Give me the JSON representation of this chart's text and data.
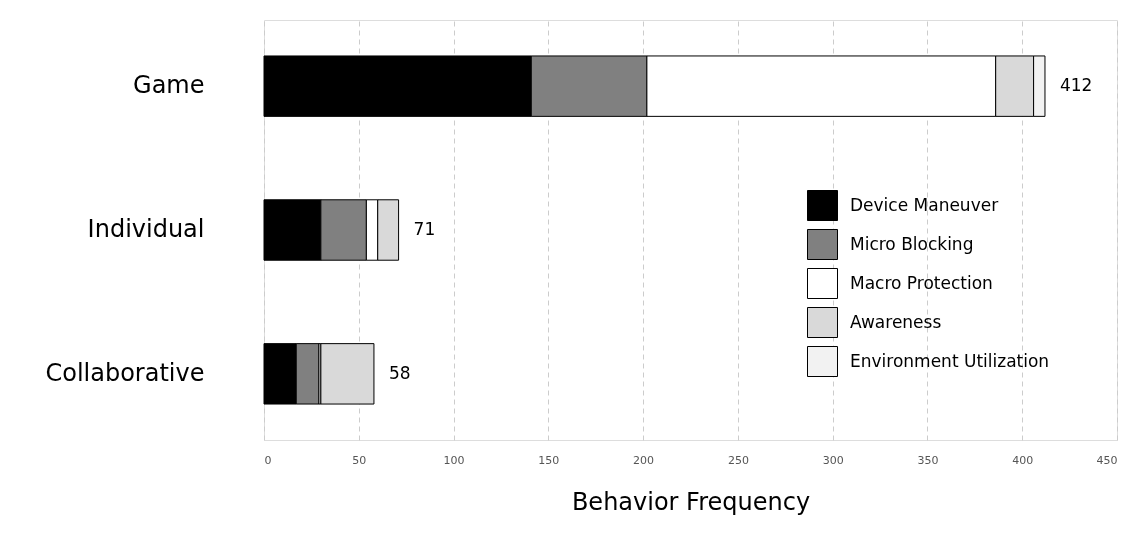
{
  "chart_data": {
    "type": "bar",
    "orientation": "horizontal",
    "stacked": true,
    "xlabel": "Behavior Frequency",
    "categories": [
      "Game",
      "Individual",
      "Collaborative"
    ],
    "series": [
      {
        "name": "Device Maneuver",
        "color": "#000000",
        "values": [
          141,
          30,
          17
        ]
      },
      {
        "name": "Micro Blocking",
        "color": "#808080",
        "values": [
          61,
          24,
          12
        ]
      },
      {
        "name": "Macro Protection",
        "color": "#ffffff",
        "values": [
          184,
          6,
          1
        ]
      },
      {
        "name": "Awareness",
        "color": "#d9d9d9",
        "values": [
          20,
          11,
          28
        ]
      },
      {
        "name": "Environment Utilization",
        "color": "#f2f2f2",
        "values": [
          6,
          0,
          0
        ]
      }
    ],
    "totals": [
      "412",
      "71",
      "58"
    ],
    "xlim": [
      0,
      450
    ],
    "xticks": [
      0,
      50,
      100,
      150,
      200,
      250,
      300,
      350,
      400,
      450
    ],
    "grid": "x",
    "legend": "bottom right"
  }
}
